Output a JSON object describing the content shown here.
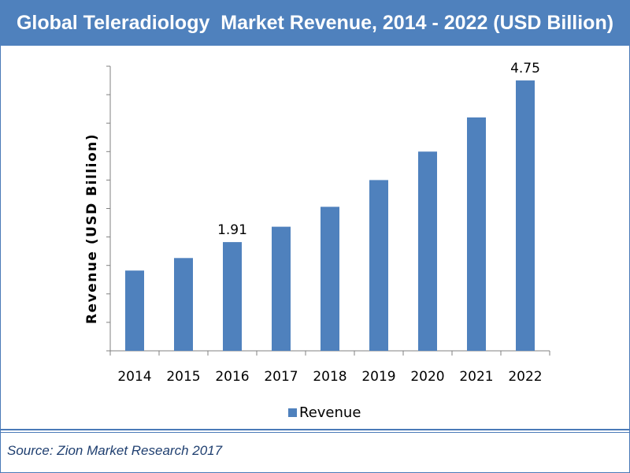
{
  "title": "Global Teleradiology  Market Revenue, 2014 - 2022 (USD Billion)",
  "source": "Source: Zion Market Research 2017",
  "colors": {
    "bar": "#4f81bd",
    "header": "#4f81bd",
    "border": "#4a7ab8"
  },
  "chart_data": {
    "type": "bar",
    "title": "Global Teleradiology  Market Revenue, 2014 - 2022 (USD Billion)",
    "xlabel": "",
    "ylabel": "Revenue  (USD Billion)",
    "categories": [
      "2014",
      "2015",
      "2016",
      "2017",
      "2018",
      "2019",
      "2020",
      "2021",
      "2022"
    ],
    "series": [
      {
        "name": "Revenue",
        "values": [
          1.41,
          1.63,
          1.91,
          2.18,
          2.53,
          3.0,
          3.5,
          4.1,
          4.75
        ],
        "color": "#4f81bd"
      }
    ],
    "data_labels": [
      {
        "category": "2016",
        "text": "1.91"
      },
      {
        "category": "2022",
        "text": "4.75"
      }
    ],
    "ylim": [
      0,
      5
    ],
    "y_tick_labels_shown": false,
    "grid": false,
    "legend": "bottom-center"
  }
}
